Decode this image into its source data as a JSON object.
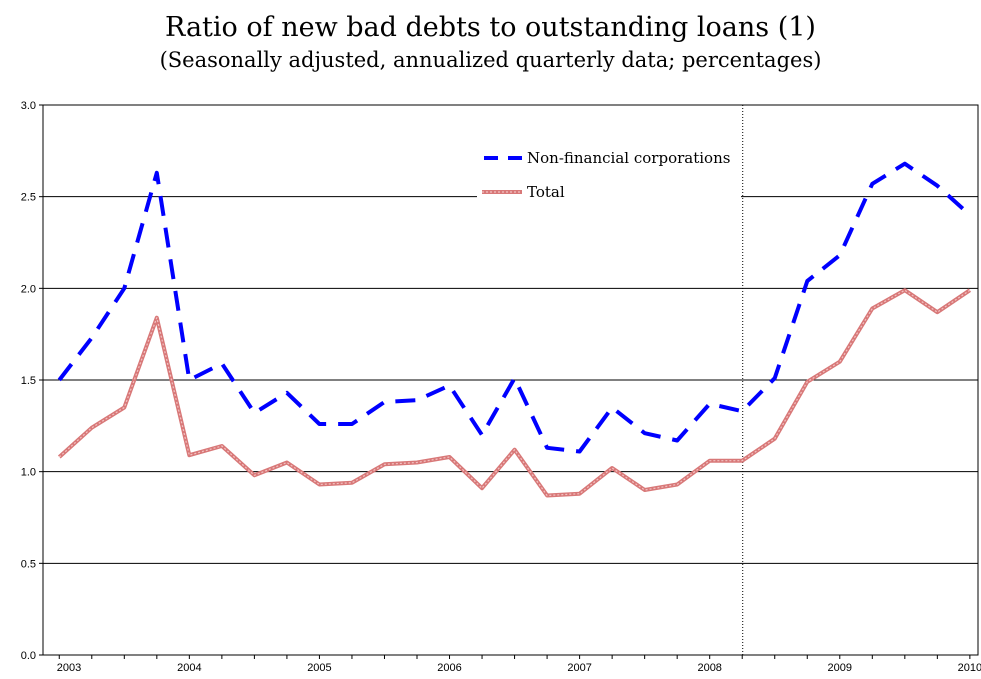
{
  "chart_data": {
    "type": "line",
    "title": "Ratio of new bad debts to outstanding loans (1)",
    "subtitle": "(Seasonally adjusted, annualized quarterly data; percentages)",
    "xlabel": "",
    "ylabel": "",
    "ylim": [
      0,
      3.0
    ],
    "y_ticks": [
      "0.0",
      "0.5",
      "1.0",
      "1.5",
      "2.0",
      "2.5",
      "3.0"
    ],
    "x_tick_labels": [
      "2003",
      "2004",
      "2005",
      "2006",
      "2007",
      "2008",
      "2009",
      "2010"
    ],
    "quarters": 29,
    "grid": true,
    "legend_position": "top-right",
    "vertical_marker_quarter": 21,
    "series": [
      {
        "name": "Non-financial corporations",
        "color": "#0000ff",
        "style": "dashed",
        "values": [
          1.5,
          1.73,
          2.0,
          2.63,
          1.5,
          1.59,
          1.32,
          1.43,
          1.26,
          1.26,
          1.38,
          1.39,
          1.47,
          1.2,
          1.51,
          1.13,
          1.11,
          1.35,
          1.21,
          1.17,
          1.37,
          1.33,
          1.51,
          2.04,
          2.18,
          2.57,
          2.68,
          2.56,
          2.4
        ]
      },
      {
        "name": "Total",
        "color": "#d87878",
        "style": "solid",
        "values": [
          1.08,
          1.24,
          1.35,
          1.84,
          1.09,
          1.14,
          0.98,
          1.05,
          0.93,
          0.94,
          1.04,
          1.05,
          1.08,
          0.91,
          1.12,
          0.87,
          0.88,
          1.02,
          0.9,
          0.93,
          1.06,
          1.06,
          1.18,
          1.49,
          1.6,
          1.89,
          1.99,
          1.87,
          1.99
        ]
      }
    ]
  }
}
